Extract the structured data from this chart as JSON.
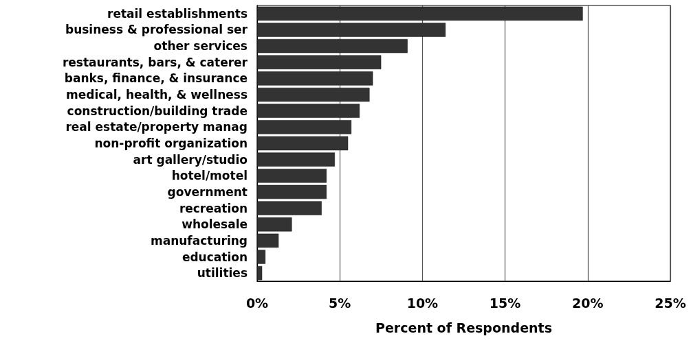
{
  "chart_data": {
    "type": "bar",
    "orientation": "horizontal",
    "xlabel": "Percent of Respondents",
    "categories": [
      "retail establishments",
      "business & professional ser",
      "other services",
      "restaurants, bars, & caterer",
      "banks, finance, & insurance",
      "medical, health, & wellness",
      "construction/building trade",
      "real estate/property manag",
      "non-profit organization",
      "art gallery/studio",
      "hotel/motel",
      "government",
      "recreation",
      "wholesale",
      "manufacturing",
      "education",
      "utilities"
    ],
    "values": [
      19.7,
      11.4,
      9.1,
      7.5,
      7.0,
      6.8,
      6.2,
      5.7,
      5.5,
      4.7,
      4.2,
      4.2,
      3.9,
      2.1,
      1.3,
      0.5,
      0.3
    ],
    "color": "#333333",
    "xlim": [
      0,
      25
    ],
    "xticks": [
      {
        "value": 0,
        "label": "0%"
      },
      {
        "value": 5,
        "label": "5%"
      },
      {
        "value": 10,
        "label": "10%"
      },
      {
        "value": 15,
        "label": "15%"
      },
      {
        "value": 20,
        "label": "20%"
      },
      {
        "value": 25,
        "label": "25%"
      }
    ],
    "grid": "x"
  }
}
